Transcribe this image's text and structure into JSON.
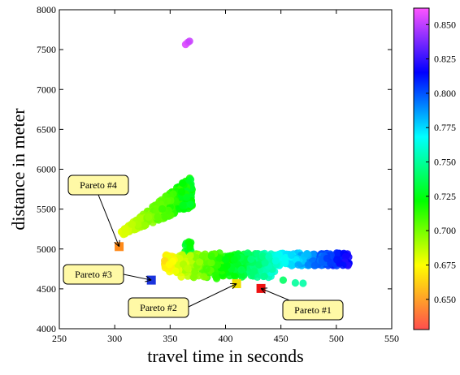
{
  "chart_data": {
    "type": "scatter",
    "xlabel": "travel time in seconds",
    "ylabel": "distance in meter",
    "xlim": [
      250,
      550
    ],
    "ylim": [
      4000,
      8000
    ],
    "x_ticks": [
      250,
      300,
      350,
      400,
      450,
      500,
      550
    ],
    "y_ticks": [
      4000,
      4500,
      5000,
      5500,
      6000,
      6500,
      7000,
      7500,
      8000
    ],
    "grid": false,
    "colorbar": {
      "range": [
        0.628,
        0.862
      ],
      "ticks": [
        "0.650",
        "0.675",
        "0.700",
        "0.725",
        "0.750",
        "0.775",
        "0.800",
        "0.825",
        "0.850"
      ],
      "tick_values": [
        0.65,
        0.675,
        0.7,
        0.725,
        0.75,
        0.775,
        0.8,
        0.825,
        0.85
      ],
      "colormap": [
        "#ff4d4d",
        "#ffff00",
        "#00ff00",
        "#00ffff",
        "#0000ff",
        "#ff55ff"
      ]
    },
    "pareto_points": [
      {
        "label": "Pareto #1",
        "x": 432,
        "y": 4505,
        "color": "#ee1111"
      },
      {
        "label": "Pareto #2",
        "x": 410,
        "y": 4565,
        "color": "#eedd00"
      },
      {
        "label": "Pareto #3",
        "x": 333,
        "y": 4610,
        "color": "#1a33dd"
      },
      {
        "label": "Pareto #4",
        "x": 304,
        "y": 5030,
        "color": "#ff8a1a"
      }
    ],
    "clusters": [
      {
        "name": "upper diagonal band",
        "x_range": [
          306,
          370
        ],
        "y_bottom_range": [
          5170,
          5530
        ],
        "y_top_range": [
          5220,
          5930
        ],
        "value_range": [
          0.67,
          0.735
        ]
      },
      {
        "name": "lower horizontal band",
        "x_range": [
          345,
          512
        ],
        "y_range": [
          4560,
          4950
        ],
        "value_range": [
          0.67,
          0.82
        ]
      },
      {
        "name": "small group near x=365",
        "x_range": [
          362,
          369
        ],
        "y_range": [
          4950,
          5100
        ],
        "value_range": [
          0.72,
          0.735
        ]
      },
      {
        "name": "outliers near top",
        "x": 366,
        "y": 7590,
        "value": 0.855
      }
    ]
  }
}
